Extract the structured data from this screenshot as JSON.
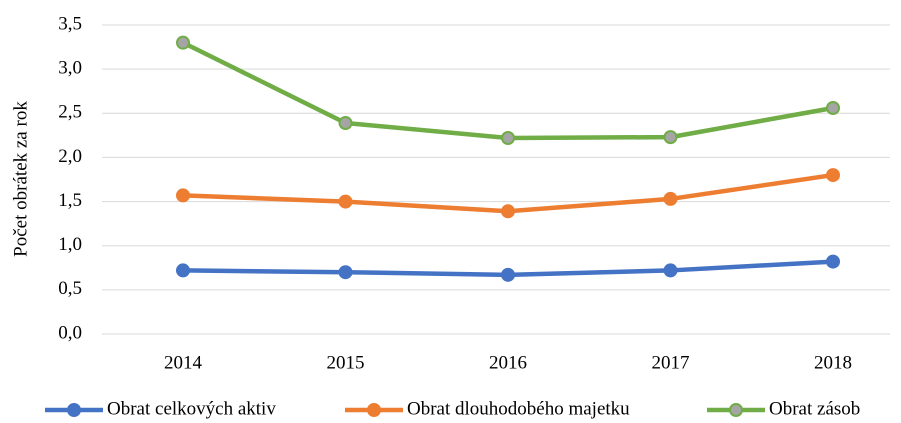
{
  "chart_data": {
    "type": "line",
    "y_label": "Počet obrátek za rok",
    "categories": [
      "2014",
      "2015",
      "2016",
      "2017",
      "2018"
    ],
    "series": [
      {
        "name": "Obrat celkových aktiv",
        "color": "#4472c4",
        "values": [
          0.72,
          0.7,
          0.67,
          0.72,
          0.82
        ]
      },
      {
        "name": "Obrat dlouhodobého majetku",
        "color": "#ed7d31",
        "values": [
          1.57,
          1.5,
          1.39,
          1.53,
          1.8
        ]
      },
      {
        "name": "Obrat zásob",
        "color": "#70ad47",
        "marker_fill": "#a5a5a5",
        "values": [
          3.3,
          2.39,
          2.22,
          2.23,
          2.56
        ]
      }
    ],
    "ylim": [
      0,
      3.5
    ],
    "yticks": [
      {
        "value": 0,
        "label": "0,0"
      },
      {
        "value": 0.5,
        "label": "0,5"
      },
      {
        "value": 1,
        "label": "1,0"
      },
      {
        "value": 1.5,
        "label": "1,5"
      },
      {
        "value": 2,
        "label": "2,0"
      },
      {
        "value": 2.5,
        "label": "2,5"
      },
      {
        "value": 3,
        "label": "3,0"
      },
      {
        "value": 3.5,
        "label": "3,5"
      }
    ],
    "grid": true,
    "legend": "bottom"
  }
}
